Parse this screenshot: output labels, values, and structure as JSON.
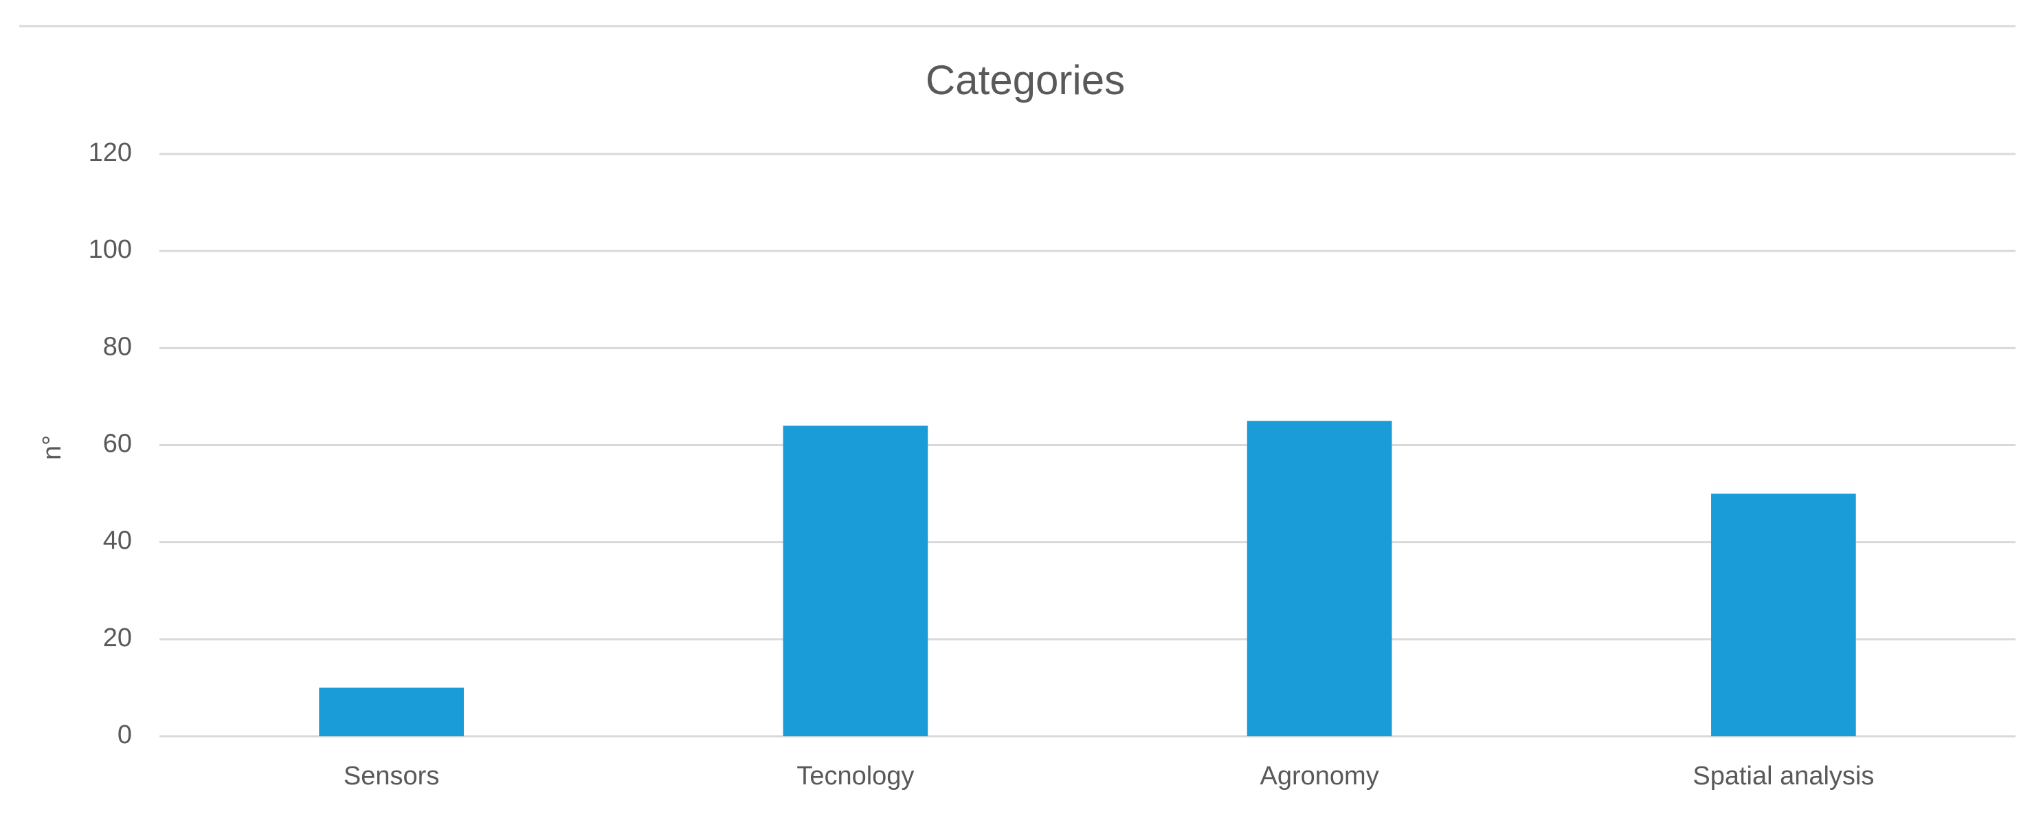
{
  "chart_data": {
    "type": "bar",
    "title": "Categories",
    "y_label": "n°",
    "categories": [
      "Sensors",
      "Tecnology",
      "Agronomy",
      "Spatial analysis"
    ],
    "values": [
      10,
      64,
      65,
      50
    ],
    "color": "#1a9cd8",
    "ylim": [
      0,
      120
    ],
    "yticks": [
      0,
      20,
      40,
      60,
      80,
      100,
      120
    ],
    "grid": true
  }
}
